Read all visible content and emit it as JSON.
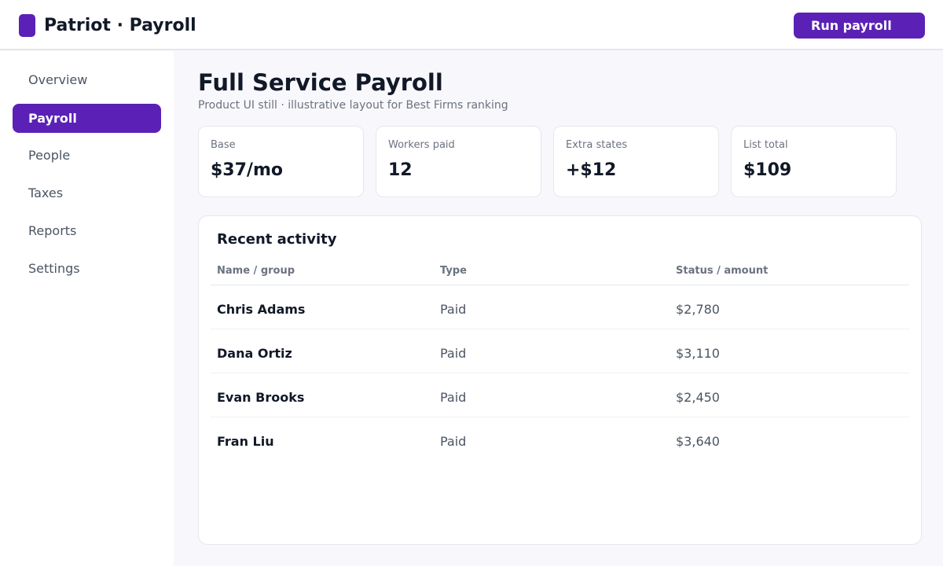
{
  "header": {
    "app_title": "Patriot · Payroll",
    "run_button": "Run payroll",
    "accent_color": "#5b21b6"
  },
  "sidebar": {
    "items": [
      {
        "label": "Overview",
        "active": false
      },
      {
        "label": "Payroll",
        "active": true
      },
      {
        "label": "People",
        "active": false
      },
      {
        "label": "Taxes",
        "active": false
      },
      {
        "label": "Reports",
        "active": false
      },
      {
        "label": "Settings",
        "active": false
      }
    ]
  },
  "main": {
    "title": "Full Service Payroll",
    "subtitle": "Product UI still · illustrative layout for Best Firms ranking",
    "stats": [
      {
        "label": "Base",
        "value": "$37/mo"
      },
      {
        "label": "Workers paid",
        "value": "12"
      },
      {
        "label": "Extra states",
        "value": "+$12"
      },
      {
        "label": "List total",
        "value": "$109"
      }
    ],
    "activity": {
      "title": "Recent activity",
      "columns": [
        "Name / group",
        "Type",
        "Status / amount"
      ],
      "rows": [
        {
          "name": "Chris Adams",
          "type": "Paid",
          "amount": "$2,780"
        },
        {
          "name": "Dana Ortiz",
          "type": "Paid",
          "amount": "$3,110"
        },
        {
          "name": "Evan Brooks",
          "type": "Paid",
          "amount": "$2,450"
        },
        {
          "name": "Fran Liu",
          "type": "Paid",
          "amount": "$3,640"
        }
      ]
    }
  }
}
